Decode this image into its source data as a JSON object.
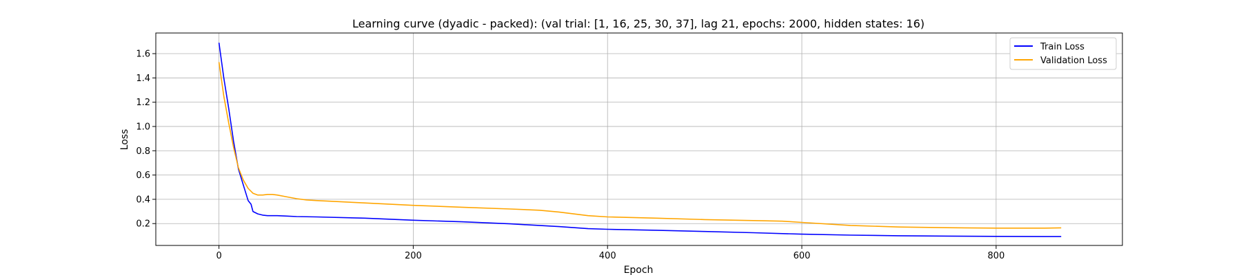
{
  "chart_data": {
    "type": "line",
    "title": "Learning curve (dyadic - packed): (val trial: [1, 16, 25, 30, 37], lag 21, epochs: 2000, hidden states: 16)",
    "xlabel": "Epoch",
    "ylabel": "Loss",
    "xlim": [
      -65,
      930
    ],
    "ylim": [
      0.02,
      1.77
    ],
    "xticks": [
      0,
      200,
      400,
      600,
      800
    ],
    "yticks": [
      0.2,
      0.4,
      0.6,
      0.8,
      1.0,
      1.2,
      1.4,
      1.6
    ],
    "xtick_labels": [
      "0",
      "200",
      "400",
      "600",
      "800"
    ],
    "ytick_labels": [
      "0.2",
      "0.4",
      "0.6",
      "0.8",
      "1.0",
      "1.2",
      "1.4",
      "1.6"
    ],
    "grid": true,
    "legend_position": "top-right",
    "series": [
      {
        "name": "Train Loss",
        "color": "#0000ff",
        "x": [
          0,
          5,
          10,
          15,
          20,
          25,
          30,
          33,
          35,
          40,
          45,
          50,
          60,
          70,
          80,
          100,
          150,
          200,
          250,
          300,
          350,
          380,
          400,
          450,
          500,
          550,
          600,
          650,
          700,
          750,
          800,
          850,
          867
        ],
        "y": [
          1.69,
          1.4,
          1.15,
          0.88,
          0.65,
          0.52,
          0.39,
          0.36,
          0.3,
          0.28,
          0.27,
          0.265,
          0.265,
          0.262,
          0.258,
          0.255,
          0.245,
          0.228,
          0.215,
          0.198,
          0.175,
          0.158,
          0.153,
          0.145,
          0.135,
          0.125,
          0.113,
          0.105,
          0.1,
          0.097,
          0.095,
          0.093,
          0.093
        ]
      },
      {
        "name": "Validation Loss",
        "color": "#ffa500",
        "x": [
          0,
          5,
          10,
          15,
          20,
          25,
          30,
          35,
          40,
          45,
          50,
          55,
          60,
          70,
          80,
          90,
          100,
          150,
          200,
          250,
          300,
          330,
          350,
          380,
          400,
          450,
          500,
          550,
          580,
          600,
          650,
          700,
          750,
          800,
          850,
          867
        ],
        "y": [
          1.53,
          1.25,
          1.03,
          0.83,
          0.66,
          0.56,
          0.49,
          0.45,
          0.435,
          0.435,
          0.44,
          0.44,
          0.435,
          0.42,
          0.405,
          0.395,
          0.39,
          0.37,
          0.35,
          0.335,
          0.32,
          0.31,
          0.295,
          0.265,
          0.255,
          0.245,
          0.233,
          0.225,
          0.22,
          0.21,
          0.185,
          0.172,
          0.166,
          0.163,
          0.163,
          0.165
        ]
      }
    ]
  }
}
